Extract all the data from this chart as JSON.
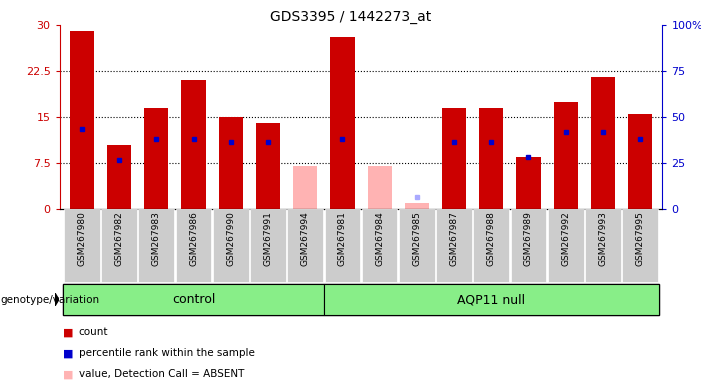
{
  "title": "GDS3395 / 1442273_at",
  "samples": [
    "GSM267980",
    "GSM267982",
    "GSM267983",
    "GSM267986",
    "GSM267990",
    "GSM267991",
    "GSM267994",
    "GSM267981",
    "GSM267984",
    "GSM267985",
    "GSM267987",
    "GSM267988",
    "GSM267989",
    "GSM267992",
    "GSM267993",
    "GSM267995"
  ],
  "groups": [
    "control",
    "control",
    "control",
    "control",
    "control",
    "control",
    "control",
    "AQP11 null",
    "AQP11 null",
    "AQP11 null",
    "AQP11 null",
    "AQP11 null",
    "AQP11 null",
    "AQP11 null",
    "AQP11 null",
    "AQP11 null"
  ],
  "count_values": [
    29.0,
    10.5,
    16.5,
    21.0,
    15.0,
    14.0,
    null,
    28.0,
    null,
    null,
    16.5,
    16.5,
    8.5,
    17.5,
    21.5,
    15.5
  ],
  "absent_values": [
    null,
    null,
    null,
    null,
    null,
    null,
    7.0,
    null,
    7.0,
    1.0,
    null,
    null,
    null,
    null,
    null,
    null
  ],
  "percentile_values": [
    13.0,
    8.0,
    11.5,
    11.5,
    11.0,
    11.0,
    null,
    11.5,
    null,
    null,
    11.0,
    11.0,
    8.5,
    12.5,
    12.5,
    11.5
  ],
  "absent_rank_values": [
    null,
    null,
    null,
    null,
    null,
    null,
    null,
    null,
    null,
    2.0,
    null,
    null,
    null,
    null,
    null,
    null
  ],
  "control_count": 7,
  "group1_label": "control",
  "group2_label": "AQP11 null",
  "left_axis_color": "#cc0000",
  "right_axis_color": "#0000cc",
  "bar_color_present": "#cc0000",
  "bar_color_absent": "#ffb3b3",
  "blue_marker_color": "#0000cc",
  "absent_rank_color": "#aaaaff",
  "group_bg_color": "#88ee88",
  "tick_label_bg": "#cccccc",
  "ylim_left": [
    0,
    30
  ],
  "ylim_right": [
    0,
    100
  ],
  "yticks_left": [
    0,
    7.5,
    15,
    22.5,
    30
  ],
  "ytick_labels_left": [
    "0",
    "7.5",
    "15",
    "22.5",
    "30"
  ],
  "yticks_right": [
    0,
    25,
    50,
    75,
    100
  ],
  "ytick_labels_right": [
    "0",
    "25",
    "50",
    "75",
    "100%"
  ]
}
